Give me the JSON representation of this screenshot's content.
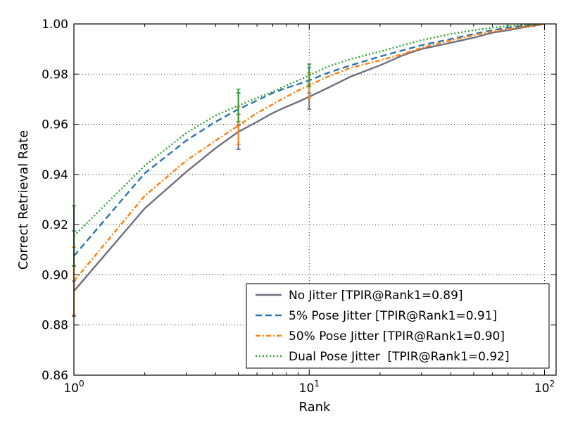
{
  "chart_data": {
    "type": "line",
    "xscale": "log",
    "xlim": [
      1,
      112
    ],
    "ylim": [
      0.86,
      1.0
    ],
    "xlabel": "Rank",
    "ylabel": "Correct Retrieval Rate",
    "grid": true,
    "legend_placement": "lower-right",
    "x_tick_labels": [
      {
        "value": 1,
        "base": "10",
        "exp": "0"
      },
      {
        "value": 10,
        "base": "10",
        "exp": "1"
      },
      {
        "value": 100,
        "base": "10",
        "exp": "2"
      }
    ],
    "y_ticks": [
      0.86,
      0.88,
      0.9,
      0.92,
      0.94,
      0.96,
      0.98,
      1.0
    ],
    "y_tick_labels": [
      "0.86",
      "0.88",
      "0.90",
      "0.92",
      "0.94",
      "0.96",
      "0.98",
      "1.00"
    ],
    "series": [
      {
        "name": "No Jitter [TPIR@Rank1=0.89]",
        "color": "#6e6f7f",
        "dash": "solid",
        "x": [
          1,
          2,
          3,
          4,
          5,
          6,
          7,
          8,
          9,
          10,
          12,
          15,
          20,
          25,
          30,
          40,
          50,
          60,
          70,
          80,
          90,
          100
        ],
        "y": [
          0.8935,
          0.9265,
          0.941,
          0.9505,
          0.957,
          0.961,
          0.9645,
          0.967,
          0.969,
          0.971,
          0.9745,
          0.979,
          0.9835,
          0.9875,
          0.99,
          0.9925,
          0.9945,
          0.9965,
          0.9975,
          0.9985,
          0.9993,
          1.0
        ],
        "errorbars": [
          {
            "x": 1,
            "y": 0.8935,
            "err": 0.01
          },
          {
            "x": 5,
            "y": 0.957,
            "err": 0.007
          },
          {
            "x": 10,
            "y": 0.971,
            "err": 0.005
          }
        ]
      },
      {
        "name": "5% Pose Jitter [TPIR@Rank1=0.91]",
        "color": "#2a74b0",
        "dash": "dashed",
        "x": [
          1,
          2,
          3,
          4,
          5,
          6,
          7,
          8,
          9,
          10,
          12,
          15,
          20,
          25,
          30,
          40,
          50,
          60,
          70,
          80,
          90,
          100
        ],
        "y": [
          0.9075,
          0.9405,
          0.9535,
          0.961,
          0.966,
          0.9695,
          0.9725,
          0.9745,
          0.976,
          0.9775,
          0.9805,
          0.9835,
          0.987,
          0.9895,
          0.9915,
          0.994,
          0.996,
          0.9975,
          0.9985,
          0.9992,
          0.9996,
          1.0
        ],
        "errorbars": [
          {
            "x": 1,
            "y": 0.9075,
            "err": 0.01
          },
          {
            "x": 5,
            "y": 0.966,
            "err": 0.0065
          },
          {
            "x": 10,
            "y": 0.9775,
            "err": 0.005
          }
        ]
      },
      {
        "name": "50% Pose Jitter [TPIR@Rank1=0.90]",
        "color": "#ff7f0e",
        "dash": "dashdot",
        "x": [
          1,
          2,
          3,
          4,
          5,
          6,
          7,
          8,
          9,
          10,
          12,
          15,
          20,
          25,
          30,
          40,
          50,
          60,
          70,
          80,
          90,
          100
        ],
        "y": [
          0.8975,
          0.9315,
          0.9455,
          0.9535,
          0.9595,
          0.9645,
          0.968,
          0.971,
          0.9735,
          0.9755,
          0.979,
          0.9825,
          0.9855,
          0.988,
          0.9905,
          0.9935,
          0.9955,
          0.997,
          0.998,
          0.9988,
          0.9994,
          1.0
        ],
        "errorbars": [
          {
            "x": 1,
            "y": 0.8975,
            "err": 0.0135
          },
          {
            "x": 5,
            "y": 0.9595,
            "err": 0.0075
          },
          {
            "x": 10,
            "y": 0.9755,
            "err": 0.005
          }
        ]
      },
      {
        "name": "Dual Pose Jitter  [TPIR@Rank1=0.92]",
        "color": "#2ca02c",
        "dash": "dotted",
        "x": [
          1,
          2,
          3,
          4,
          5,
          6,
          7,
          8,
          9,
          10,
          12,
          15,
          20,
          25,
          30,
          40,
          50,
          60,
          70,
          80,
          90,
          100
        ],
        "y": [
          0.9155,
          0.9435,
          0.9565,
          0.9635,
          0.9675,
          0.9705,
          0.973,
          0.9755,
          0.9775,
          0.9795,
          0.983,
          0.986,
          0.989,
          0.9915,
          0.9935,
          0.996,
          0.9975,
          0.9985,
          0.9992,
          0.9996,
          0.9999,
          1.0
        ],
        "errorbars": [
          {
            "x": 1,
            "y": 0.9155,
            "err": 0.012
          },
          {
            "x": 5,
            "y": 0.9675,
            "err": 0.0065
          },
          {
            "x": 10,
            "y": 0.9795,
            "err": 0.0045
          }
        ]
      }
    ]
  }
}
